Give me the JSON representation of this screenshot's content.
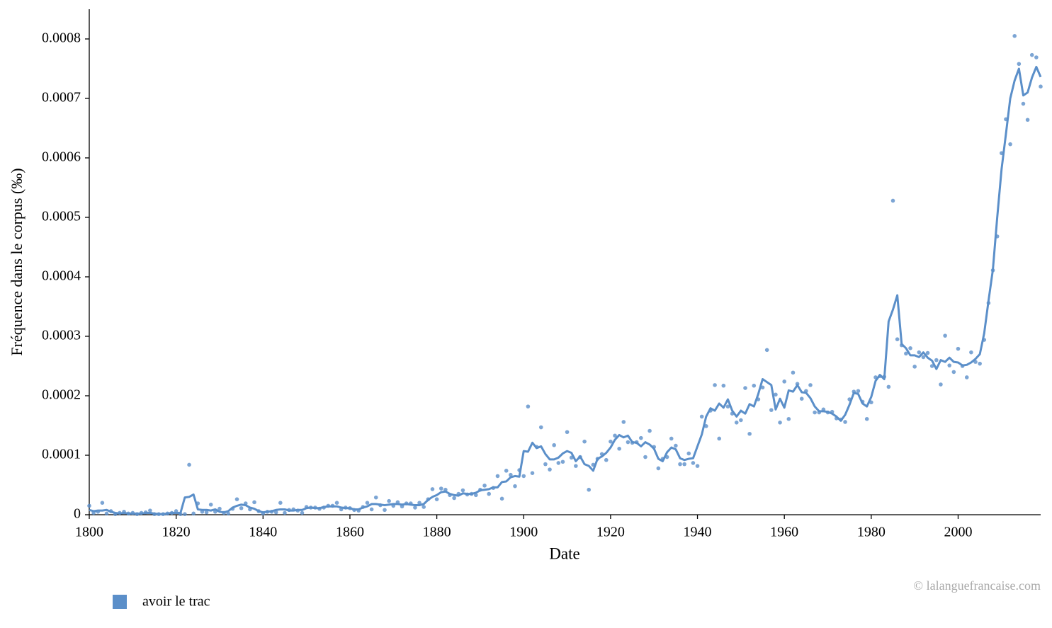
{
  "chart_data": {
    "type": "line",
    "xlabel": "Date",
    "ylabel": "Fréquence dans le corpus (‰)",
    "credit": "© lalanguefrancaise.com",
    "xlim": [
      1800,
      2019
    ],
    "ylim": [
      0,
      0.00085
    ],
    "xticks": [
      1800,
      1820,
      1840,
      1860,
      1880,
      1900,
      1920,
      1940,
      1960,
      1980,
      2000
    ],
    "yticks": [
      0,
      0.0001,
      0.0002,
      0.0003,
      0.0004,
      0.0005,
      0.0006,
      0.0007,
      0.0008
    ],
    "grid": false,
    "legend": "bottom-left",
    "x": [
      1800,
      1801,
      1802,
      1803,
      1804,
      1805,
      1806,
      1807,
      1808,
      1809,
      1810,
      1811,
      1812,
      1813,
      1814,
      1815,
      1816,
      1817,
      1818,
      1819,
      1820,
      1821,
      1822,
      1823,
      1824,
      1825,
      1826,
      1827,
      1828,
      1829,
      1830,
      1831,
      1832,
      1833,
      1834,
      1835,
      1836,
      1837,
      1838,
      1839,
      1840,
      1841,
      1842,
      1843,
      1844,
      1845,
      1846,
      1847,
      1848,
      1849,
      1850,
      1851,
      1852,
      1853,
      1854,
      1855,
      1856,
      1857,
      1858,
      1859,
      1860,
      1861,
      1862,
      1863,
      1864,
      1865,
      1866,
      1867,
      1868,
      1869,
      1870,
      1871,
      1872,
      1873,
      1874,
      1875,
      1876,
      1877,
      1878,
      1879,
      1880,
      1881,
      1882,
      1883,
      1884,
      1885,
      1886,
      1887,
      1888,
      1889,
      1890,
      1891,
      1892,
      1893,
      1894,
      1895,
      1896,
      1897,
      1898,
      1899,
      1900,
      1901,
      1902,
      1903,
      1904,
      1905,
      1906,
      1907,
      1908,
      1909,
      1910,
      1911,
      1912,
      1913,
      1914,
      1915,
      1916,
      1917,
      1918,
      1919,
      1920,
      1921,
      1922,
      1923,
      1924,
      1925,
      1926,
      1927,
      1928,
      1929,
      1930,
      1931,
      1932,
      1933,
      1934,
      1935,
      1936,
      1937,
      1938,
      1939,
      1940,
      1941,
      1942,
      1943,
      1944,
      1945,
      1946,
      1947,
      1948,
      1949,
      1950,
      1951,
      1952,
      1953,
      1954,
      1955,
      1956,
      1957,
      1958,
      1959,
      1960,
      1961,
      1962,
      1963,
      1964,
      1965,
      1966,
      1967,
      1968,
      1969,
      1970,
      1971,
      1972,
      1973,
      1974,
      1975,
      1976,
      1977,
      1978,
      1979,
      1980,
      1981,
      1982,
      1983,
      1984,
      1985,
      1986,
      1987,
      1988,
      1989,
      1990,
      1991,
      1992,
      1993,
      1994,
      1995,
      1996,
      1997,
      1998,
      1999,
      2000,
      2001,
      2002,
      2003,
      2004,
      2005,
      2006,
      2007,
      2008,
      2009,
      2010,
      2011,
      2012,
      2013,
      2014,
      2015,
      2016,
      2017,
      2018,
      2019
    ],
    "series": [
      {
        "name": "avoir le trac",
        "color": "#5b8fc9",
        "values": [
          8e-06,
          6e-06,
          7e-06,
          7e-06,
          8e-06,
          5e-06,
          3e-06,
          2e-06,
          3e-06,
          2e-06,
          2e-06,
          2e-06,
          2e-06,
          3e-06,
          3e-06,
          2e-06,
          1e-06,
          1e-06,
          2e-06,
          3e-06,
          3e-06,
          3e-06,
          2.9e-05,
          3e-05,
          3.4e-05,
          9e-06,
          8e-06,
          8e-06,
          7e-06,
          9e-06,
          5e-06,
          4e-06,
          6e-06,
          1.2e-05,
          1.5e-05,
          1.7e-05,
          1.6e-05,
          1.2e-05,
          1e-05,
          6e-06,
          4e-06,
          5e-06,
          6e-06,
          8e-06,
          9e-06,
          9e-06,
          7e-06,
          7e-06,
          8e-06,
          8e-06,
          1.1e-05,
          1.2e-05,
          1.1e-05,
          1.1e-05,
          1.3e-05,
          1.4e-05,
          1.4e-05,
          1.4e-05,
          1.2e-05,
          1.1e-05,
          1.1e-05,
          9e-06,
          9e-06,
          1.2e-05,
          1.4e-05,
          1.8e-05,
          1.8e-05,
          1.7e-05,
          1.6e-05,
          1.7e-05,
          1.8e-05,
          1.8e-05,
          1.7e-05,
          1.8e-05,
          1.7e-05,
          1.6e-05,
          1.6e-05,
          1.8e-05,
          2.5e-05,
          3e-05,
          3.3e-05,
          3.8e-05,
          3.9e-05,
          3.5e-05,
          3.3e-05,
          3.2e-05,
          3.6e-05,
          3.5e-05,
          3.5e-05,
          3.7e-05,
          4.1e-05,
          4.2e-05,
          4.3e-05,
          4.6e-05,
          4.6e-05,
          5.5e-05,
          5.6e-05,
          6.3e-05,
          6.5e-05,
          6.4e-05,
          0.000107,
          0.000106,
          0.000121,
          0.000112,
          0.000115,
          0.000102,
          9.3e-05,
          9.3e-05,
          9.6e-05,
          0.000103,
          0.000107,
          0.000104,
          9e-05,
          9.8e-05,
          8.5e-05,
          8.2e-05,
          7.4e-05,
          9.4e-05,
          9.8e-05,
          0.000104,
          0.000113,
          0.000126,
          0.000134,
          0.00013,
          0.000133,
          0.000122,
          0.000121,
          0.000115,
          0.000122,
          0.000118,
          0.000111,
          9.4e-05,
          9e-05,
          0.000105,
          0.000113,
          0.00011,
          9.5e-05,
          9.2e-05,
          9.4e-05,
          9.5e-05,
          0.000115,
          0.000135,
          0.000165,
          0.000179,
          0.000175,
          0.000187,
          0.00018,
          0.000194,
          0.000175,
          0.000165,
          0.000175,
          0.00017,
          0.000186,
          0.000182,
          0.000203,
          0.000228,
          0.000223,
          0.000218,
          0.000177,
          0.000195,
          0.00018,
          0.000209,
          0.000207,
          0.000218,
          0.000206,
          0.000205,
          0.000196,
          0.000182,
          0.000174,
          0.000174,
          0.000173,
          0.00017,
          0.000165,
          0.000158,
          0.000168,
          0.000185,
          0.000205,
          0.000203,
          0.000187,
          0.000182,
          0.000198,
          0.000225,
          0.000235,
          0.000228,
          0.000325,
          0.000345,
          0.000369,
          0.000287,
          0.00028,
          0.000268,
          0.000268,
          0.000265,
          0.000273,
          0.000264,
          0.000259,
          0.000245,
          0.00026,
          0.000257,
          0.000264,
          0.000257,
          0.000256,
          0.000251,
          0.000252,
          0.000256,
          0.000262,
          0.00027,
          0.000305,
          0.00036,
          0.000412,
          0.0005,
          0.000581,
          0.00064,
          0.0007,
          0.00073,
          0.00075,
          0.000705,
          0.00071,
          0.000735,
          0.000753,
          0.000736
        ],
        "points": [
          1.5e-05,
          3e-06,
          5e-06,
          2e-05,
          2e-06,
          6e-06,
          1e-06,
          3e-06,
          5e-06,
          2e-06,
          3e-06,
          1e-06,
          3e-06,
          4e-06,
          7e-06,
          1e-06,
          1e-06,
          1e-06,
          2e-06,
          3e-06,
          6e-06,
          1e-06,
          1e-06,
          8.4e-05,
          2e-06,
          1.9e-05,
          5e-06,
          4e-06,
          1.7e-05,
          5e-06,
          1e-05,
          3e-06,
          2e-06,
          1e-05,
          2.6e-05,
          1.1e-05,
          1.9e-05,
          9e-06,
          2.1e-05,
          6e-06,
          2e-06,
          5e-06,
          5e-06,
          4e-06,
          2e-05,
          3e-06,
          8e-06,
          9e-06,
          7e-06,
          3e-06,
          1.3e-05,
          1.2e-05,
          1.2e-05,
          1e-05,
          1.2e-05,
          1.5e-05,
          1.5e-05,
          2e-05,
          9e-06,
          1.2e-05,
          1.1e-05,
          8e-06,
          7e-06,
          1.3e-05,
          2e-05,
          9e-06,
          2.9e-05,
          1.6e-05,
          8e-06,
          2.3e-05,
          1.5e-05,
          2.1e-05,
          1.4e-05,
          1.9e-05,
          1.9e-05,
          1.2e-05,
          2e-05,
          1.3e-05,
          2.6e-05,
          4.3e-05,
          2.6e-05,
          4.4e-05,
          4.2e-05,
          3.3e-05,
          2.8e-05,
          3.5e-05,
          4.1e-05,
          3.4e-05,
          3.5e-05,
          3.3e-05,
          4.2e-05,
          4.9e-05,
          3.5e-05,
          4.5e-05,
          6.5e-05,
          2.7e-05,
          7.4e-05,
          6.7e-05,
          4.8e-05,
          7.5e-05,
          6.5e-05,
          0.000182,
          7e-05,
          0.000114,
          0.000147,
          8.5e-05,
          7.6e-05,
          0.000117,
          8.7e-05,
          8.9e-05,
          0.000139,
          9.6e-05,
          8.2e-05,
          9.7e-05,
          0.000123,
          4.2e-05,
          8.4e-05,
          9.4e-05,
          0.000102,
          9.2e-05,
          0.000123,
          0.000133,
          0.000111,
          0.000156,
          0.000122,
          0.000121,
          0.000122,
          0.000129,
          9.7e-05,
          0.000141,
          0.000114,
          7.8e-05,
          9.4e-05,
          9.7e-05,
          0.000128,
          0.000116,
          8.5e-05,
          8.5e-05,
          0.000103,
          8.7e-05,
          8.2e-05,
          0.000165,
          0.000149,
          0.000175,
          0.000218,
          0.000128,
          0.000217,
          0.000182,
          0.00017,
          0.000155,
          0.000159,
          0.000213,
          0.000136,
          0.000217,
          0.000194,
          0.000214,
          0.000277,
          0.000176,
          0.000202,
          0.000155,
          0.000224,
          0.000161,
          0.000239,
          0.00022,
          0.000195,
          0.000208,
          0.000218,
          0.000172,
          0.000172,
          0.000177,
          0.000172,
          0.000173,
          0.000162,
          0.00016,
          0.000156,
          0.000194,
          0.000207,
          0.000208,
          0.00019,
          0.000161,
          0.000189,
          0.000231,
          0.000233,
          0.000232,
          0.000215,
          0.000528,
          0.000295,
          0.000285,
          0.000271,
          0.00028,
          0.000249,
          0.000273,
          0.000265,
          0.000272,
          0.00025,
          0.00026,
          0.000219,
          0.000301,
          0.000251,
          0.00024,
          0.000279,
          0.00025,
          0.000231,
          0.000273,
          0.000257,
          0.000254,
          0.000294,
          0.000356,
          0.000411,
          0.000468,
          0.000608,
          0.000665,
          0.000623,
          0.000805,
          0.000758,
          0.000691,
          0.000664,
          0.000773,
          0.000769,
          0.00072
        ]
      }
    ]
  }
}
